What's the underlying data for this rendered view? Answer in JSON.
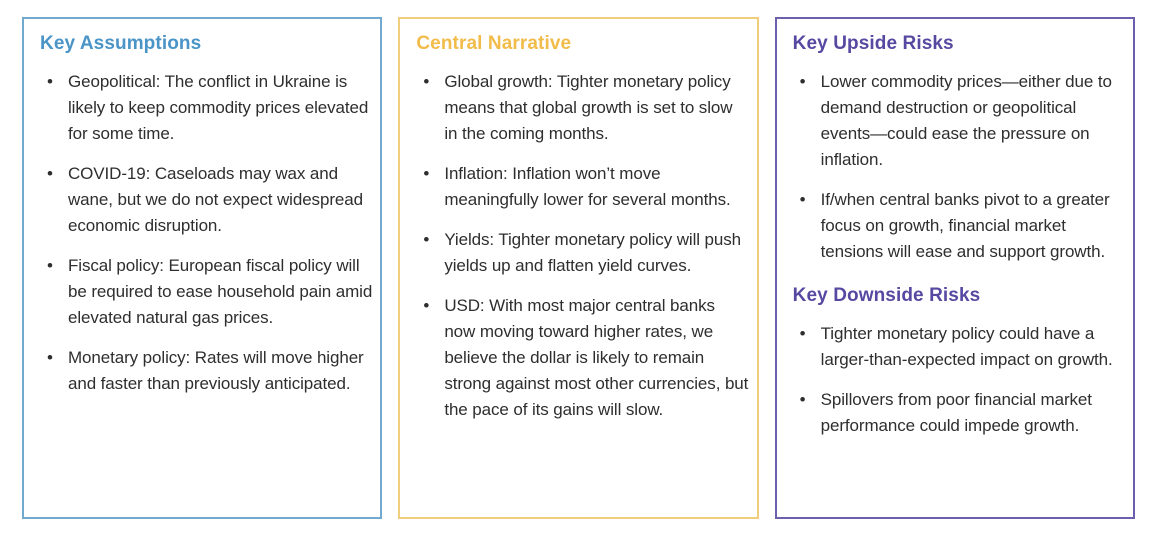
{
  "page": {
    "background_color": "#ffffff",
    "text_color": "#2e2e2e"
  },
  "panels": [
    {
      "id": "key-assumptions",
      "accent_color": "#4a94c7",
      "border_color": "#72a9ce",
      "sections": [
        {
          "title": "Key Assumptions",
          "bullets": [
            "Geopolitical: The conflict in Ukraine is likely to keep commodity prices elevated for some time.",
            "COVID-19: Caseloads may wax and wane, but we do not expect widespread economic disruption.",
            "Fiscal policy: European fiscal policy will be required to ease household pain amid elevated natural gas prices.",
            "Monetary policy: Rates will move higher and faster than previously anticipated."
          ]
        }
      ]
    },
    {
      "id": "central-narrative",
      "accent_color": "#f2bc4b",
      "border_color": "#f1ce7d",
      "sections": [
        {
          "title": "Central Narrative",
          "bullets": [
            "Global growth: Tighter monetary policy means that global growth is set to slow in the coming months.",
            "Inflation: Inflation won’t move meaningfully lower for several months.",
            "Yields: Tighter monetary policy will push yields up and flatten yield curves.",
            "USD: With most major central banks now moving toward higher rates, we believe the dollar is likely to remain strong against most other currencies, but the pace of its gains will slow."
          ]
        }
      ]
    },
    {
      "id": "key-risks",
      "accent_color": "#5748a2",
      "border_color": "#6c5fae",
      "sections": [
        {
          "title": "Key Upside Risks",
          "bullets": [
            "Lower commodity prices—either due to demand destruction or geopolitical events—could ease the pressure on inflation.",
            "If/when central banks pivot to a greater focus on growth, financial market tensions will ease and support growth."
          ]
        },
        {
          "title": "Key Downside Risks",
          "bullets": [
            "Tighter monetary policy could have a larger-than-expected impact on growth.",
            "Spillovers from poor financial market performance could impede growth."
          ]
        }
      ]
    }
  ]
}
